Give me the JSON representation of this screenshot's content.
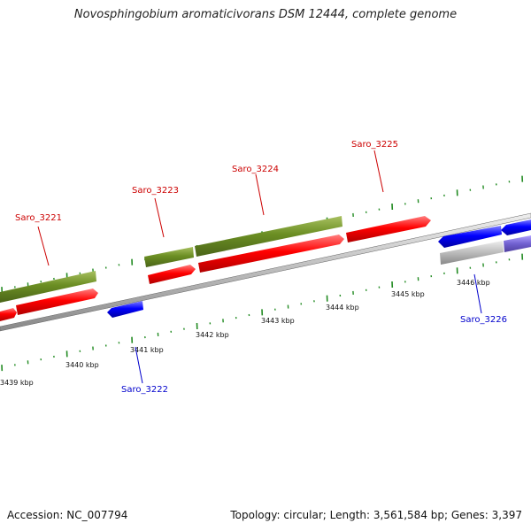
{
  "title": "Novosphingobium aromaticivorans DSM 12444, complete genome",
  "footer": {
    "accession": "Accession: NC_007794",
    "summary": "Topology: circular; Length: 3,561,584 bp; Genes: 3,397"
  },
  "colors": {
    "forward_gene": "#ff0000",
    "reverse_gene": "#0000ff",
    "olive_feature": "#6b8e23",
    "backbone": "#7a7a7a",
    "tick": "#228b22",
    "forward_label": "#cc0000",
    "reverse_label": "#0000cc"
  },
  "tick_labels": [
    "3439 kbp",
    "3440 kbp",
    "3441 kbp",
    "3442 kbp",
    "3443 kbp",
    "3444 kbp",
    "3445 kbp",
    "3446 kbp"
  ],
  "genes": [
    {
      "id": "Saro_3221",
      "strand": "forward"
    },
    {
      "id": "Saro_3222",
      "strand": "reverse"
    },
    {
      "id": "Saro_3223",
      "strand": "forward"
    },
    {
      "id": "Saro_3224",
      "strand": "forward"
    },
    {
      "id": "Saro_3225",
      "strand": "forward"
    },
    {
      "id": "Saro_3226",
      "strand": "reverse"
    }
  ]
}
